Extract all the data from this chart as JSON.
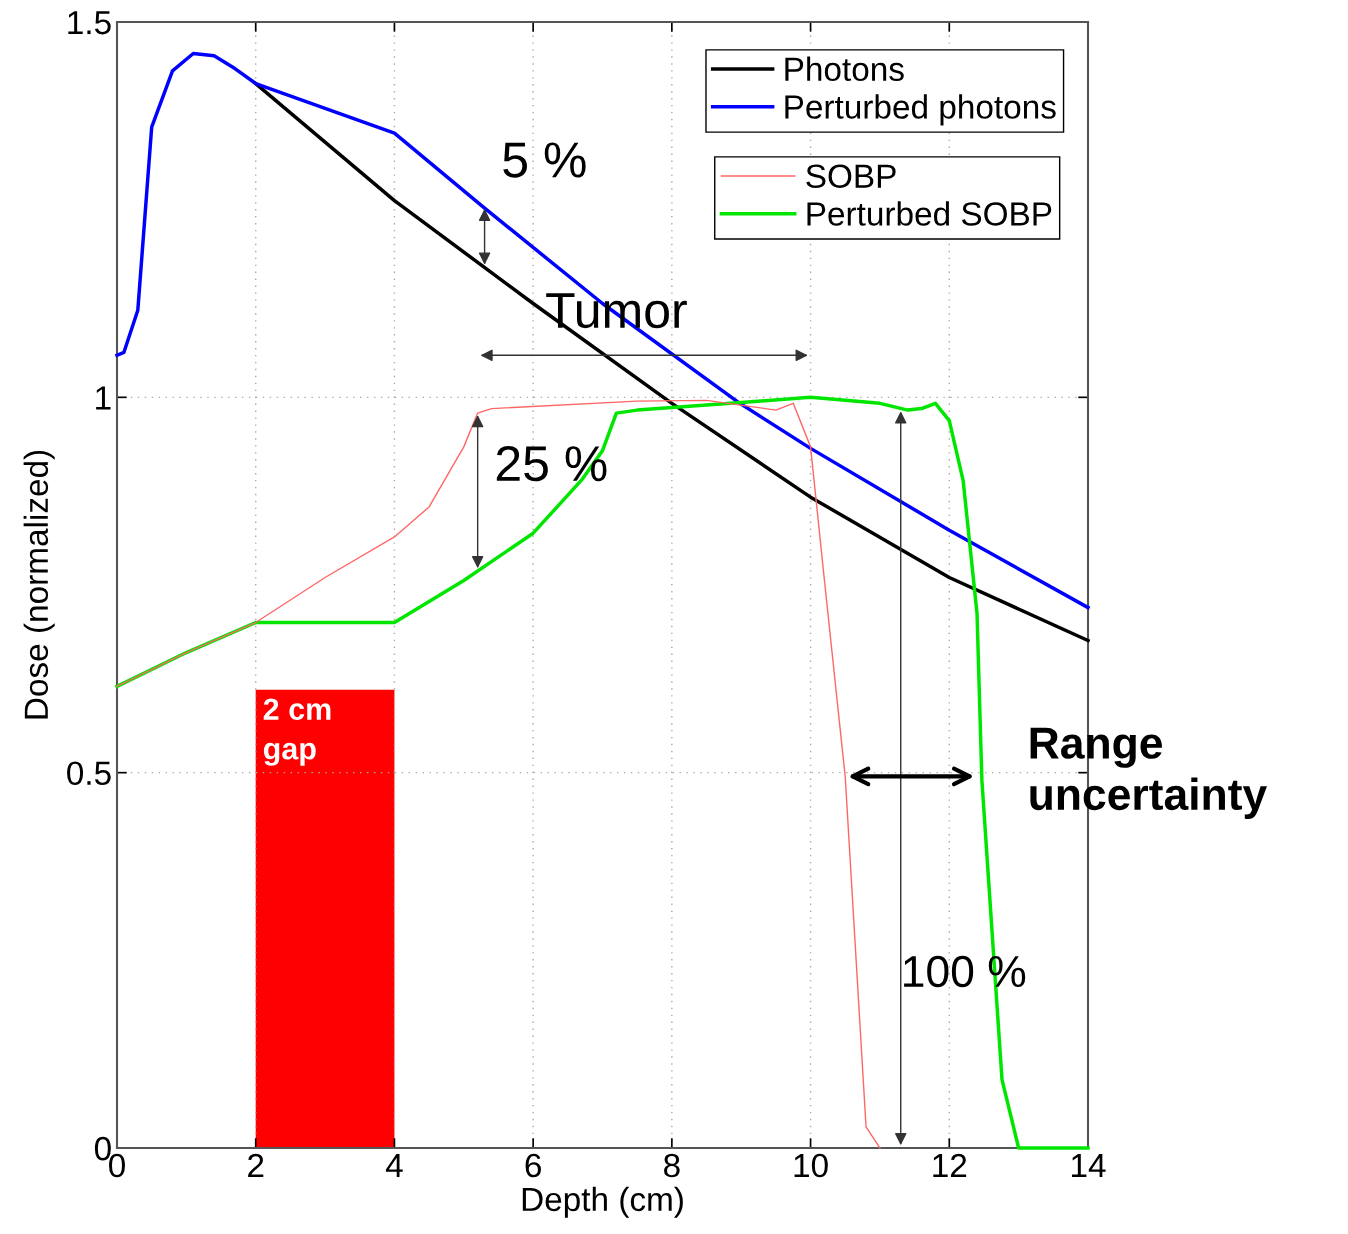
{
  "chart_data": {
    "type": "line",
    "xlabel": "Depth (cm)",
    "ylabel": "Dose (normalized)",
    "xlim": [
      0,
      14
    ],
    "ylim": [
      0,
      1.5
    ],
    "xticks": [
      0,
      2,
      4,
      6,
      8,
      10,
      12,
      14
    ],
    "yticks": [
      0,
      0.5,
      1,
      1.5
    ],
    "grid": true,
    "legend": "top right",
    "line_style": "solid",
    "marker": "none",
    "series": [
      {
        "name": "Photons",
        "color": "#000000",
        "x": [
          2,
          4,
          6,
          8,
          10,
          12,
          14
        ],
        "values": [
          1.418,
          1.262,
          1.125,
          0.992,
          0.867,
          0.76,
          0.676
        ]
      },
      {
        "name": "Perturbed photons",
        "color": "#0000ff",
        "x": [
          0,
          0.1,
          0.3,
          0.5,
          0.8,
          1.1,
          1.4,
          1.7,
          2,
          4,
          5.3,
          7,
          8.98,
          10,
          12,
          14
        ],
        "values": [
          1.056,
          1.06,
          1.116,
          1.36,
          1.435,
          1.458,
          1.455,
          1.438,
          1.418,
          1.352,
          1.252,
          1.125,
          0.992,
          0.932,
          0.823,
          0.72
        ]
      },
      {
        "name": "SOBP",
        "color": "#ff6666",
        "x": [
          0,
          1,
          2,
          3,
          4,
          4.5,
          5,
          5.2,
          5.4,
          7.5,
          8.5,
          9.5,
          9.75,
          10,
          10.2,
          10.5,
          10.8,
          11
        ],
        "values": [
          0.615,
          0.66,
          0.7,
          0.76,
          0.814,
          0.854,
          0.934,
          0.979,
          0.985,
          0.995,
          0.996,
          0.983,
          0.992,
          0.934,
          0.756,
          0.494,
          0.028,
          0
        ]
      },
      {
        "name": "Perturbed SOBP",
        "color": "#00e600",
        "x": [
          0,
          1,
          2,
          4,
          5,
          6,
          6.7,
          7,
          7.2,
          7.5,
          9,
          10,
          11,
          11.4,
          11.6,
          11.8,
          12,
          12.2,
          12.4,
          12.47,
          12.76,
          13,
          14
        ],
        "values": [
          0.615,
          0.66,
          0.7,
          0.7,
          0.756,
          0.819,
          0.89,
          0.929,
          0.979,
          0.983,
          0.993,
          1.0,
          0.992,
          0.983,
          0.985,
          0.992,
          0.969,
          0.889,
          0.712,
          0.49,
          0.091,
          0,
          0
        ]
      }
    ],
    "bands": [
      {
        "axis": "x",
        "from": 2,
        "to": 4,
        "label": "2 cm gap",
        "color": "#ff0000"
      }
    ],
    "annotations": [
      {
        "text": "5 %",
        "x": 5.3,
        "y": 1.255
      },
      "Tumor",
      {
        "text": "25 %",
        "x": 5.2,
        "y": 0.98
      },
      "100 %",
      "Range uncertainty"
    ]
  }
}
